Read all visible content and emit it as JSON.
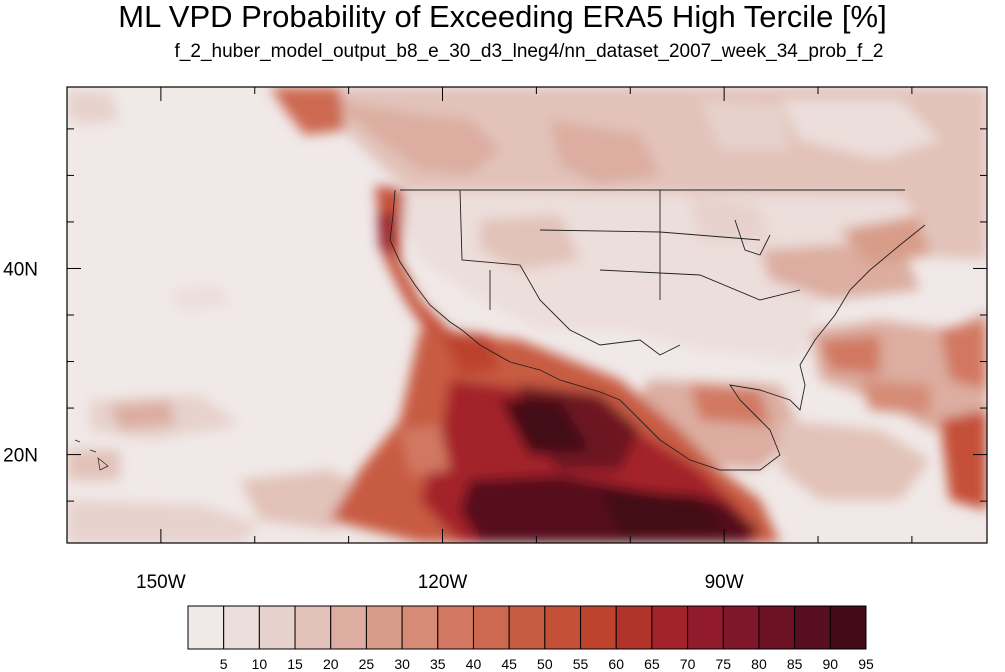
{
  "title": "ML VPD Probability of Exceeding ERA5 High Tercile [%]",
  "subtitle": "f_2_huber_model_output_b8_e_30_d3_lneg4/nn_dataset_2007_week_34_prob_f_2",
  "map": {
    "lon_range": [
      -160,
      -62
    ],
    "lat_range": [
      10.5,
      59.5
    ],
    "lat_tick_labels": [
      {
        "value": 40,
        "label": "40N"
      },
      {
        "value": 20,
        "label": "20N"
      }
    ],
    "lon_tick_labels": [
      {
        "value": -150,
        "label": "150W"
      },
      {
        "value": -120,
        "label": "120W"
      },
      {
        "value": -90,
        "label": "90W"
      }
    ],
    "lat_minor_ticks": [
      15,
      25,
      30,
      35,
      45,
      50,
      55
    ],
    "lon_minor_ticks": [
      -140,
      -130,
      -110,
      -100,
      -80,
      -70
    ]
  },
  "colorbar": {
    "labels": [
      "5",
      "10",
      "15",
      "20",
      "25",
      "30",
      "35",
      "40",
      "45",
      "50",
      "55",
      "60",
      "65",
      "70",
      "75",
      "80",
      "85",
      "90",
      "95"
    ],
    "colors": [
      "#f0e9e8",
      "#ecdedb",
      "#e7d1cc",
      "#e2c2b9",
      "#dcada0",
      "#d89d89",
      "#d58b76",
      "#d27862",
      "#cd6951",
      "#c85c43",
      "#c55038",
      "#bd432e",
      "#b13329",
      "#a4232a",
      "#921b2b",
      "#801629",
      "#6d1223",
      "#570e1e",
      "#430a17"
    ]
  }
}
